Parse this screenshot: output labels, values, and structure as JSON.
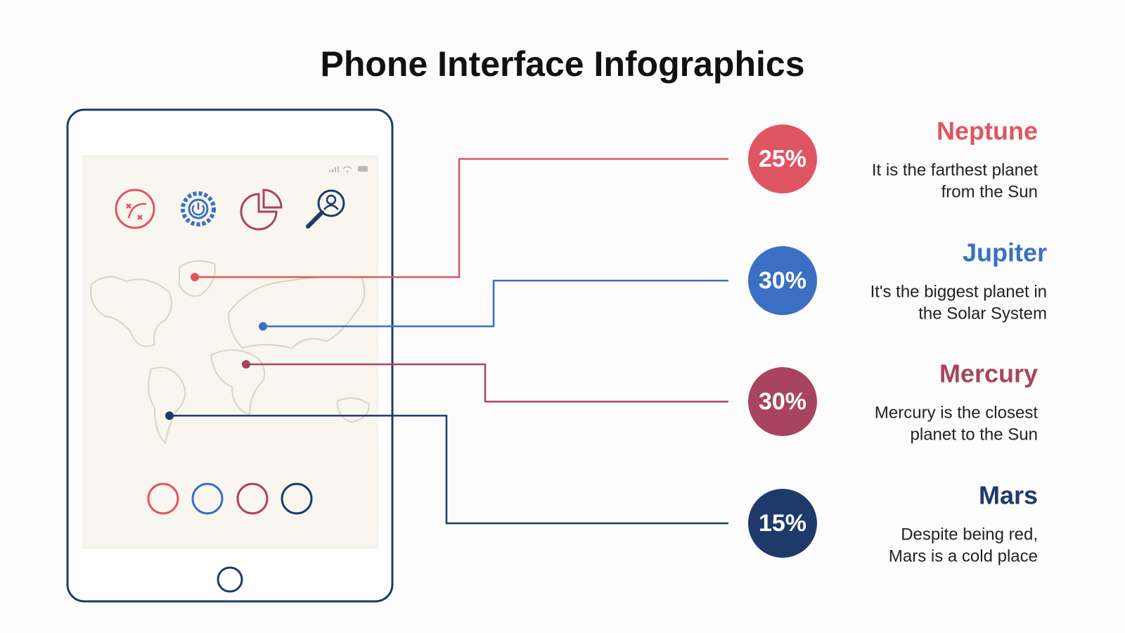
{
  "title": "Phone Interface Infographics",
  "items": [
    {
      "percent": "25%",
      "name": "Neptune",
      "description": [
        "It is the farthest planet",
        "from the Sun"
      ],
      "color": "#e05562"
    },
    {
      "percent": "30%",
      "name": "Jupiter",
      "description": [
        "It's the biggest planet in",
        "the Solar System"
      ],
      "color": "#3a6fc4"
    },
    {
      "percent": "30%",
      "name": "Mercury",
      "description": [
        "Mercury is the closest",
        "planet to the Sun"
      ],
      "color": "#a8445f"
    },
    {
      "percent": "15%",
      "name": "Mars",
      "description": [
        "Despite being red,",
        "Mars is a cold place"
      ],
      "color": "#1d3a6b"
    }
  ]
}
